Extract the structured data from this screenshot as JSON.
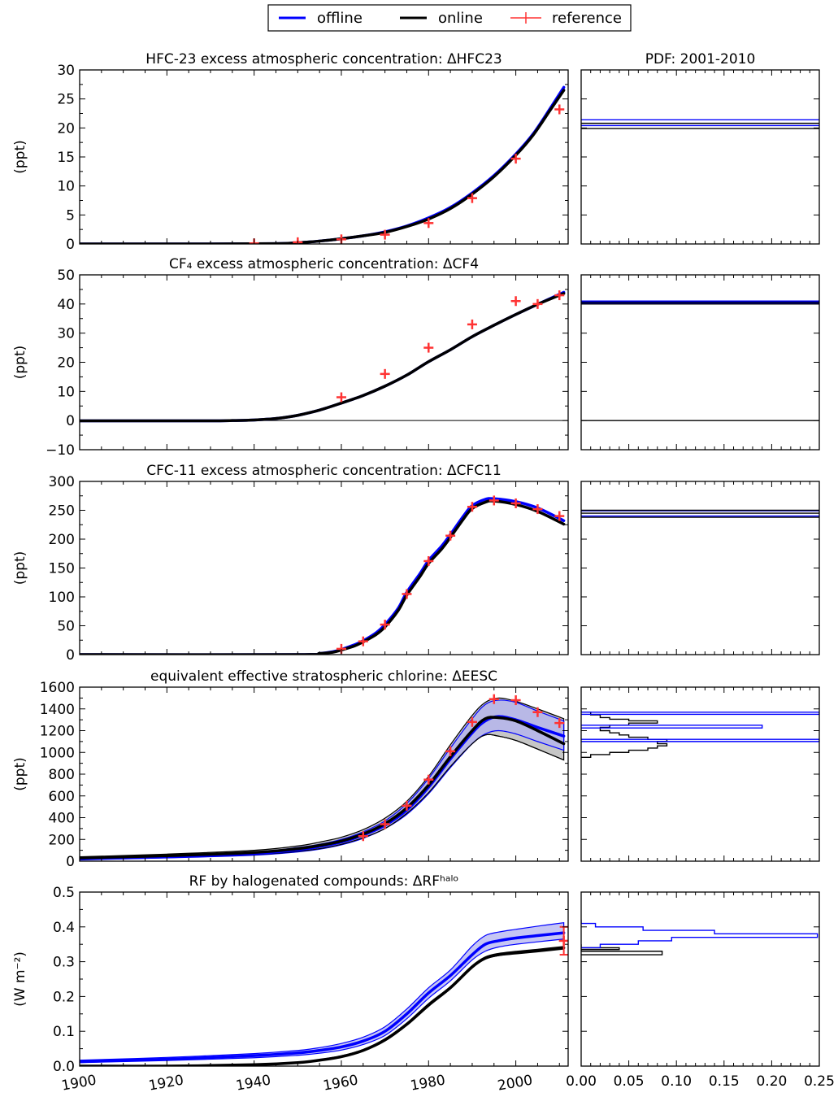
{
  "legend": {
    "items": [
      {
        "label": "offline",
        "color": "#0000ff"
      },
      {
        "label": "online",
        "color": "#000000"
      },
      {
        "label": "reference",
        "color": "#ff3333"
      }
    ]
  },
  "colors": {
    "offline": "#0000ff",
    "online": "#000000",
    "reference": "#ff3333",
    "offline_fill": "#b3b3f0",
    "online_fill": "#c0c0c0"
  },
  "pdf_title": "PDF: 2001-2010",
  "pdf_xticks": [
    "0.00",
    "0.05",
    "0.10",
    "0.15",
    "0.20",
    "0.25"
  ],
  "x_ticks": [
    "1900",
    "1920",
    "1940",
    "1960",
    "1980",
    "2000"
  ],
  "chart_data": [
    {
      "type": "line",
      "title": "HFC-23 excess atmospheric concentration: ΔHFC23",
      "ylabel": "(ppt)",
      "xlim": [
        1900,
        2012
      ],
      "ylim": [
        0,
        30
      ],
      "yticks": [
        "0",
        "5",
        "10",
        "15",
        "20",
        "25",
        "30"
      ],
      "series": [
        {
          "name": "offline",
          "x": [
            1900,
            1930,
            1945,
            1950,
            1955,
            1960,
            1965,
            1970,
            1975,
            1980,
            1985,
            1990,
            1995,
            2000,
            2004,
            2008,
            2011
          ],
          "y": [
            0,
            0,
            0.05,
            0.2,
            0.5,
            0.9,
            1.4,
            2.1,
            3.1,
            4.5,
            6.3,
            8.8,
            11.8,
            15.5,
            19.0,
            23.5,
            27.0
          ]
        },
        {
          "name": "online",
          "x": [
            1900,
            1930,
            1945,
            1950,
            1955,
            1960,
            1965,
            1970,
            1975,
            1980,
            1985,
            1990,
            1995,
            2000,
            2004,
            2008,
            2011
          ],
          "y": [
            0,
            0,
            0.05,
            0.2,
            0.5,
            0.9,
            1.4,
            2.0,
            3.0,
            4.3,
            6.1,
            8.6,
            11.6,
            15.3,
            18.8,
            23.2,
            26.5
          ]
        }
      ],
      "reference": {
        "x": [
          1940,
          1950,
          1960,
          1970,
          1980,
          1990,
          2000,
          2010
        ],
        "y": [
          0.1,
          0.3,
          0.8,
          1.6,
          3.6,
          7.9,
          14.7,
          23.2
        ]
      },
      "pdf": {
        "offline_levels": [
          21.4,
          20.4
        ],
        "online_levels": [
          20.8,
          19.9
        ]
      }
    },
    {
      "type": "line",
      "title": "CF₄ excess atmospheric concentration: ΔCF4",
      "ylabel": "(ppt)",
      "xlim": [
        1900,
        2012
      ],
      "ylim": [
        -10,
        50
      ],
      "yticks": [
        "−10",
        "0",
        "10",
        "20",
        "30",
        "40",
        "50"
      ],
      "series": [
        {
          "name": "offline",
          "x": [
            1900,
            1920,
            1930,
            1935,
            1940,
            1945,
            1950,
            1955,
            1960,
            1965,
            1970,
            1975,
            1980,
            1985,
            1990,
            1995,
            2000,
            2005,
            2011
          ],
          "y": [
            -0.1,
            -0.1,
            -0.1,
            0,
            0.2,
            0.7,
            1.8,
            3.6,
            6.0,
            8.6,
            11.8,
            15.6,
            20.2,
            24.3,
            28.8,
            32.7,
            36.4,
            39.9,
            44.0
          ]
        },
        {
          "name": "online",
          "x": [
            1900,
            1920,
            1930,
            1935,
            1940,
            1945,
            1950,
            1955,
            1960,
            1965,
            1970,
            1975,
            1980,
            1985,
            1990,
            1995,
            2000,
            2005,
            2011
          ],
          "y": [
            -0.1,
            -0.1,
            -0.1,
            0,
            0.2,
            0.7,
            1.8,
            3.6,
            6.0,
            8.6,
            11.8,
            15.6,
            20.2,
            24.3,
            28.8,
            32.7,
            36.4,
            39.9,
            43.6
          ]
        }
      ],
      "reference": {
        "x": [
          1960,
          1970,
          1980,
          1990,
          2000,
          2005,
          2010
        ],
        "y": [
          8,
          16,
          25,
          33,
          41,
          40,
          43
        ]
      },
      "pdf": {
        "offline_levels": [
          41.0,
          40.3
        ],
        "online_levels": [
          40.6,
          40.0,
          0
        ]
      }
    },
    {
      "type": "line",
      "title": "CFC-11 excess atmospheric concentration: ΔCFC11",
      "ylabel": "(ppt)",
      "xlim": [
        1900,
        2012
      ],
      "ylim": [
        0,
        300
      ],
      "yticks": [
        "0",
        "50",
        "100",
        "150",
        "200",
        "250",
        "300"
      ],
      "series": [
        {
          "name": "offline",
          "x": [
            1900,
            1950,
            1955,
            1958,
            1960,
            1963,
            1965,
            1968,
            1970,
            1973,
            1975,
            1978,
            1980,
            1983,
            1985,
            1988,
            1990,
            1993,
            1995,
            2000,
            2005,
            2011
          ],
          "y": [
            0,
            0,
            2,
            5,
            9,
            17,
            24,
            38,
            52,
            80,
            108,
            140,
            163,
            188,
            208,
            240,
            258,
            269,
            270,
            265,
            254,
            232
          ]
        },
        {
          "name": "online",
          "x": [
            1900,
            1950,
            1955,
            1958,
            1960,
            1963,
            1965,
            1968,
            1970,
            1973,
            1975,
            1978,
            1980,
            1983,
            1985,
            1988,
            1990,
            1993,
            1995,
            2000,
            2005,
            2011
          ],
          "y": [
            0,
            0,
            2,
            4,
            8,
            15,
            22,
            35,
            48,
            76,
            103,
            135,
            158,
            183,
            203,
            235,
            253,
            264,
            266,
            260,
            248,
            226
          ]
        }
      ],
      "reference": {
        "x": [
          1960,
          1965,
          1970,
          1975,
          1980,
          1985,
          1990,
          1995,
          2000,
          2005,
          2010
        ],
        "y": [
          10,
          23,
          52,
          105,
          162,
          206,
          256,
          267,
          262,
          252,
          240
        ]
      },
      "pdf": {
        "offline_levels": [
          249,
          240
        ],
        "online_levels": [
          250,
          245,
          238
        ]
      }
    },
    {
      "type": "line",
      "title": "equivalent effective stratospheric chlorine: ΔEESC",
      "ylabel": "(ppt)",
      "xlim": [
        1900,
        2012
      ],
      "ylim": [
        0,
        1600
      ],
      "yticks": [
        "0",
        "200",
        "400",
        "600",
        "800",
        "1000",
        "1200",
        "1400",
        "1600"
      ],
      "series": [
        {
          "name": "offline",
          "x": [
            1900,
            1920,
            1940,
            1950,
            1955,
            1960,
            1965,
            1970,
            1975,
            1980,
            1985,
            1990,
            1993,
            1996,
            2000,
            2005,
            2011
          ],
          "y": [
            20,
            40,
            70,
            105,
            135,
            175,
            240,
            330,
            470,
            680,
            940,
            1180,
            1290,
            1330,
            1300,
            1230,
            1150
          ]
        },
        {
          "name": "online",
          "x": [
            1900,
            1920,
            1940,
            1950,
            1955,
            1960,
            1965,
            1970,
            1975,
            1980,
            1985,
            1990,
            1993,
            1996,
            2000,
            2005,
            2011
          ],
          "y": [
            30,
            50,
            80,
            115,
            145,
            185,
            250,
            345,
            490,
            700,
            960,
            1200,
            1310,
            1320,
            1290,
            1200,
            1080
          ]
        }
      ],
      "bands": {
        "offline": {
          "lower": [
            15,
            30,
            55,
            85,
            110,
            150,
            210,
            300,
            430,
            620,
            860,
            1080,
            1170,
            1200,
            1170,
            1100,
            1020
          ],
          "upper": [
            25,
            50,
            85,
            125,
            155,
            200,
            270,
            370,
            530,
            760,
            1040,
            1310,
            1440,
            1480,
            1460,
            1380,
            1290
          ]
        },
        "online": {
          "lower": [
            20,
            35,
            60,
            90,
            115,
            155,
            215,
            300,
            440,
            630,
            870,
            1080,
            1160,
            1150,
            1110,
            1030,
            930
          ]
        },
        "online_upper": [
          40,
          65,
          100,
          140,
          175,
          220,
          290,
          395,
          550,
          780,
          1070,
          1340,
          1460,
          1500,
          1470,
          1400,
          1310
        ]
      },
      "reference": {
        "x": [
          1965,
          1970,
          1975,
          1980,
          1985,
          1990,
          1995,
          2000,
          2005,
          2010
        ],
        "y": [
          230,
          340,
          510,
          750,
          1010,
          1280,
          1490,
          1480,
          1370,
          1270
        ]
      },
      "pdf": {
        "online_steps": [
          [
            1385,
            0.0
          ],
          [
            1370,
            0.01
          ],
          [
            1345,
            0.02
          ],
          [
            1320,
            0.03
          ],
          [
            1305,
            0.05
          ],
          [
            1290,
            0.08
          ],
          [
            1270,
            0.05
          ],
          [
            1250,
            0.03
          ],
          [
            1230,
            0.02
          ],
          [
            1200,
            0.03
          ],
          [
            1180,
            0.04
          ],
          [
            1160,
            0.05
          ],
          [
            1140,
            0.07
          ],
          [
            1120,
            0.09
          ],
          [
            1100,
            0.08
          ],
          [
            1080,
            0.09
          ],
          [
            1060,
            0.08
          ],
          [
            1040,
            0.07
          ],
          [
            1020,
            0.05
          ],
          [
            1000,
            0.03
          ],
          [
            980,
            0.01
          ],
          [
            955,
            0.0
          ]
        ],
        "offline_steps": [
          [
            1370,
            0.0
          ],
          [
            1350,
            0.25
          ],
          [
            1250,
            0.0
          ],
          [
            1240,
            0.19
          ],
          [
            1225,
            0.0
          ],
          [
            1120,
            0.0
          ],
          [
            1105,
            0.25
          ]
        ]
      }
    },
    {
      "type": "area",
      "title": "RF by halogenated compounds: ΔRFʰᵃˡᵒ",
      "ylabel": "(W m⁻²)",
      "xlim": [
        1900,
        2012
      ],
      "ylim": [
        0,
        0.5
      ],
      "yticks": [
        "0.0",
        "0.1",
        "0.2",
        "0.3",
        "0.4",
        "0.5"
      ],
      "series": [
        {
          "name": "offline",
          "x": [
            1900,
            1920,
            1940,
            1950,
            1955,
            1960,
            1965,
            1970,
            1975,
            1980,
            1985,
            1990,
            1993,
            1996,
            2000,
            2005,
            2011
          ],
          "y": [
            0.013,
            0.02,
            0.03,
            0.038,
            0.045,
            0.055,
            0.072,
            0.1,
            0.15,
            0.21,
            0.26,
            0.32,
            0.35,
            0.36,
            0.368,
            0.375,
            0.383
          ]
        },
        {
          "name": "online",
          "x": [
            1900,
            1920,
            1940,
            1950,
            1955,
            1960,
            1965,
            1970,
            1975,
            1980,
            1985,
            1990,
            1993,
            1996,
            2000,
            2005,
            2011
          ],
          "y": [
            0.0,
            0.0,
            0.004,
            0.01,
            0.017,
            0.027,
            0.045,
            0.075,
            0.12,
            0.175,
            0.225,
            0.285,
            0.31,
            0.32,
            0.326,
            0.332,
            0.34
          ]
        }
      ],
      "bands": {
        "offline": {
          "lower": [
            0.01,
            0.016,
            0.024,
            0.031,
            0.037,
            0.046,
            0.062,
            0.088,
            0.136,
            0.195,
            0.245,
            0.305,
            0.33,
            0.342,
            0.35,
            0.357,
            0.365
          ],
          "upper": [
            0.017,
            0.025,
            0.036,
            0.045,
            0.053,
            0.065,
            0.083,
            0.113,
            0.164,
            0.225,
            0.276,
            0.345,
            0.375,
            0.385,
            0.393,
            0.402,
            0.412
          ]
        },
        "online": {
          "lower": [
            0.0,
            0.0,
            0.003,
            0.008,
            0.015,
            0.025,
            0.043,
            0.072,
            0.117,
            0.172,
            0.222,
            0.282,
            0.307,
            0.317,
            0.322,
            0.328,
            0.336
          ],
          "upper": [
            0.0,
            0.0,
            0.005,
            0.012,
            0.019,
            0.03,
            0.048,
            0.079,
            0.124,
            0.18,
            0.229,
            0.289,
            0.314,
            0.324,
            0.33,
            0.336,
            0.344
          ]
        }
      },
      "reference": {
        "x": [
          2011
        ],
        "y": [
          0.36
        ],
        "yerr": [
          0.04
        ]
      },
      "pdf": {
        "offline_steps": [
          [
            0.42,
            0.0
          ],
          [
            0.41,
            0.015
          ],
          [
            0.4,
            0.065
          ],
          [
            0.39,
            0.14
          ],
          [
            0.38,
            0.248
          ],
          [
            0.37,
            0.095
          ],
          [
            0.36,
            0.06
          ],
          [
            0.35,
            0.02
          ],
          [
            0.34,
            0.0
          ]
        ],
        "online_steps": [
          [
            0.35,
            0.0
          ],
          [
            0.34,
            0.04
          ],
          [
            0.335,
            0.0
          ],
          [
            0.33,
            0.085
          ],
          [
            0.32,
            0.0
          ]
        ]
      }
    }
  ]
}
